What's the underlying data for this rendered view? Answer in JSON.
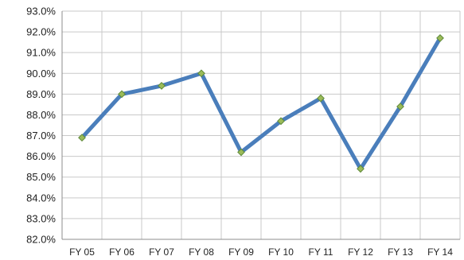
{
  "chart_data": {
    "type": "line",
    "title": "",
    "xlabel": "",
    "ylabel": "",
    "categories": [
      "FY 05",
      "FY 06",
      "FY 07",
      "FY 08",
      "FY 09",
      "FY 10",
      "FY 11",
      "FY 12",
      "FY 13",
      "FY 14"
    ],
    "series": [
      {
        "values": [
          86.9,
          89.0,
          89.4,
          90.0,
          86.2,
          87.7,
          88.8,
          85.4,
          88.4,
          91.7
        ]
      }
    ],
    "ylim": [
      82.0,
      93.0
    ],
    "ytick_step": 1.0,
    "ytick_labels": [
      "82.0%",
      "83.0%",
      "84.0%",
      "85.0%",
      "86.0%",
      "87.0%",
      "88.0%",
      "89.0%",
      "90.0%",
      "91.0%",
      "92.0%",
      "93.0%"
    ],
    "grid": true,
    "legend": "none",
    "colors": {
      "line": "#4a7ebb",
      "marker_fill": "#9bbb59",
      "marker_stroke": "#5f8a3a",
      "grid": "#c9c9c9",
      "axis": "#8c8c8c",
      "text": "#222222"
    }
  }
}
